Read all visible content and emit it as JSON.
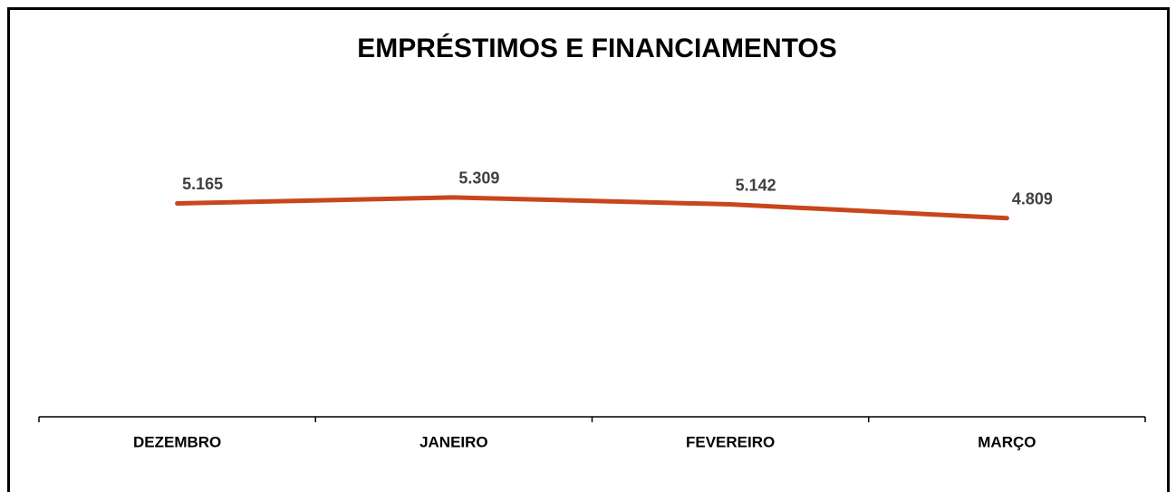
{
  "chart_data": {
    "type": "line",
    "title": "EMPRÉSTIMOS E FINANCIAMENTOS",
    "categories": [
      "DEZEMBRO",
      "JANEIRO",
      "FEVEREIRO",
      "MARÇO"
    ],
    "series": [
      {
        "color": "#c9461c",
        "values": [
          5165,
          5309,
          5142,
          4809
        ],
        "value_labels": [
          "5.165",
          "5.309",
          "5.142",
          "4.809"
        ]
      }
    ],
    "ylim": [
      0,
      10000
    ]
  }
}
